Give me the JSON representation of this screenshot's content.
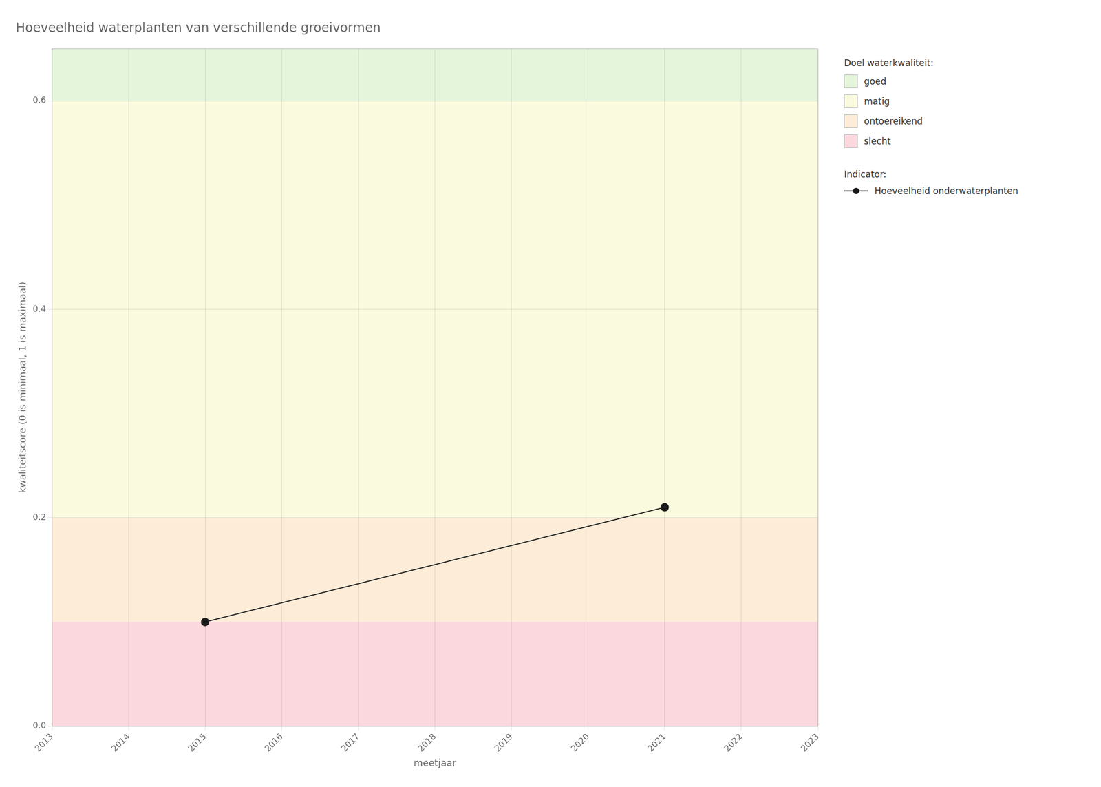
{
  "chart_data": {
    "type": "line",
    "title": "Hoeveelheid waterplanten van verschillende groeivormen",
    "x_label": "meetjaar",
    "y_label": "kwaliteitscore (0 is minimaal, 1 is maximaal)",
    "x": [
      2015,
      2021
    ],
    "series": [
      {
        "name": "Hoeveelheid onderwaterplanten",
        "color": "#1a1a1a",
        "values": [
          0.1,
          0.21
        ],
        "marker": "circle"
      }
    ],
    "xlim": [
      2013,
      2023
    ],
    "xticks": [
      2013,
      2014,
      2015,
      2016,
      2017,
      2018,
      2019,
      2020,
      2021,
      2022,
      2023
    ],
    "ylim": [
      0,
      0.65
    ],
    "yticks": [
      {
        "value": 0,
        "label": "0.0"
      },
      0.2,
      0.4,
      0.6
    ],
    "grid": true,
    "legend": "right",
    "bands_title": "Doel waterkwaliteit:",
    "series_title": "Indicator:",
    "bands": [
      {
        "name": "goed",
        "ymin": 0.6,
        "ymax": 0.65,
        "color": "#e5f5dc"
      },
      {
        "name": "matig",
        "ymin": 0.2,
        "ymax": 0.6,
        "color": "#fafadf"
      },
      {
        "name": "ontoereikend",
        "ymin": 0.1,
        "ymax": 0.2,
        "color": "#fcecd8"
      },
      {
        "name": "slecht",
        "ymin": 0.0,
        "ymax": 0.1,
        "color": "#fbd8de"
      }
    ]
  }
}
